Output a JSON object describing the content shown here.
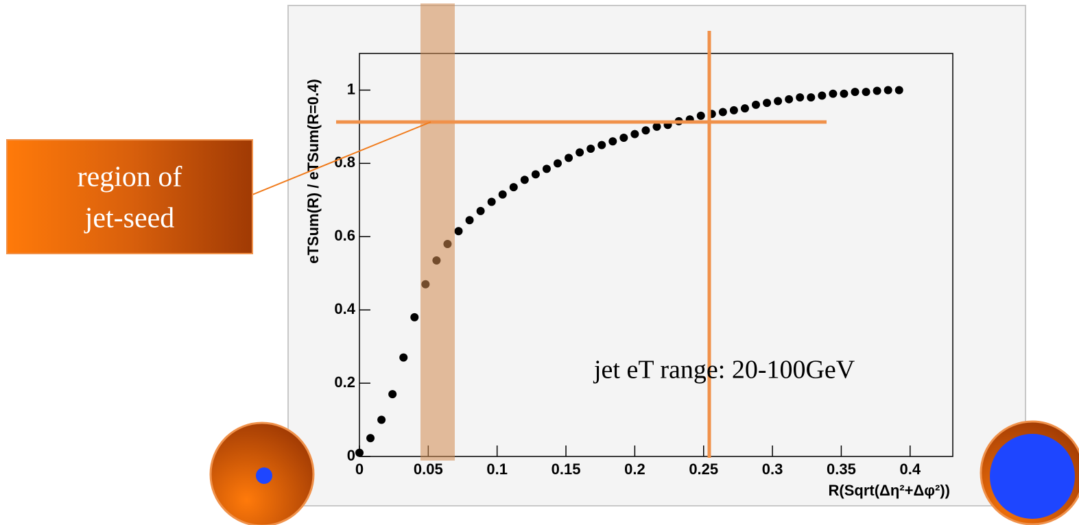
{
  "chart_data": {
    "type": "scatter",
    "x_label": "R(Sqrt(Δη²+Δφ²))",
    "y_label": "eTSum(R) / eTSum(R=0.4)",
    "annotations": [
      "region of",
      "jet-seed",
      "jet eT range: 20-100GeV"
    ],
    "color": "#000000",
    "x": [
      0,
      0.008,
      0.016,
      0.024,
      0.032,
      0.04,
      0.048,
      0.056,
      0.064,
      0.072,
      0.08,
      0.088,
      0.096,
      0.104,
      0.112,
      0.12,
      0.128,
      0.136,
      0.144,
      0.152,
      0.16,
      0.168,
      0.176,
      0.184,
      0.192,
      0.2,
      0.208,
      0.216,
      0.224,
      0.232,
      0.24,
      0.248,
      0.256,
      0.264,
      0.272,
      0.28,
      0.288,
      0.296,
      0.304,
      0.312,
      0.32,
      0.328,
      0.336,
      0.344,
      0.352,
      0.36,
      0.368,
      0.376,
      0.384,
      0.392
    ],
    "values": [
      0.01,
      0.05,
      0.1,
      0.17,
      0.27,
      0.38,
      0.47,
      0.535,
      0.58,
      0.615,
      0.645,
      0.67,
      0.695,
      0.715,
      0.735,
      0.755,
      0.77,
      0.785,
      0.8,
      0.815,
      0.83,
      0.84,
      0.85,
      0.86,
      0.87,
      0.88,
      0.89,
      0.9,
      0.905,
      0.915,
      0.92,
      0.93,
      0.935,
      0.94,
      0.945,
      0.95,
      0.96,
      0.965,
      0.97,
      0.975,
      0.98,
      0.98,
      0.985,
      0.99,
      0.99,
      0.995,
      0.995,
      0.998,
      1.0,
      1.0
    ],
    "xlim": [
      0,
      0.431
    ],
    "xticks": [
      0,
      0.05,
      0.1,
      0.15,
      0.2,
      0.25,
      0.3,
      0.35,
      0.4
    ],
    "ylim": [
      0,
      1.1
    ],
    "yticks": [
      0,
      0.2,
      0.4,
      0.6,
      0.8,
      1
    ]
  }
}
